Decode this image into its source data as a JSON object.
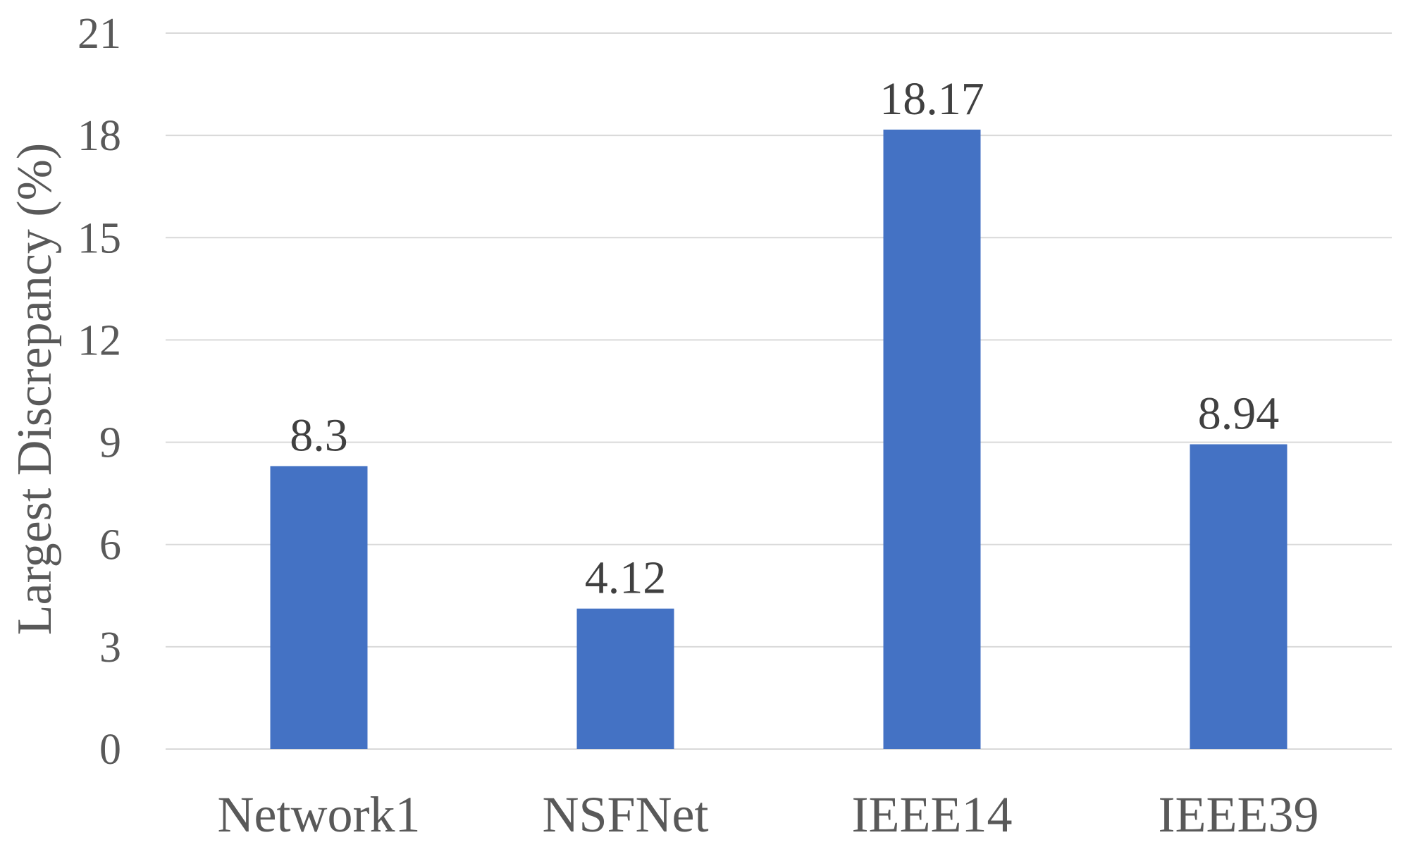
{
  "chart_data": {
    "type": "bar",
    "categories": [
      "Network1",
      "NSFNet",
      "IEEE14",
      "IEEE39"
    ],
    "values": [
      8.3,
      4.12,
      18.17,
      8.94
    ],
    "data_labels": [
      "8.3",
      "4.12",
      "18.17",
      "8.94"
    ],
    "title": "",
    "xlabel": "",
    "ylabel": "Largest Discrepancy (%)",
    "ylim": [
      0,
      21
    ],
    "yticks": [
      0,
      3,
      6,
      9,
      12,
      15,
      18,
      21
    ],
    "grid": true,
    "legend": "none",
    "bar_color": "#4472C4",
    "grid_color": "#D9D9D9"
  }
}
